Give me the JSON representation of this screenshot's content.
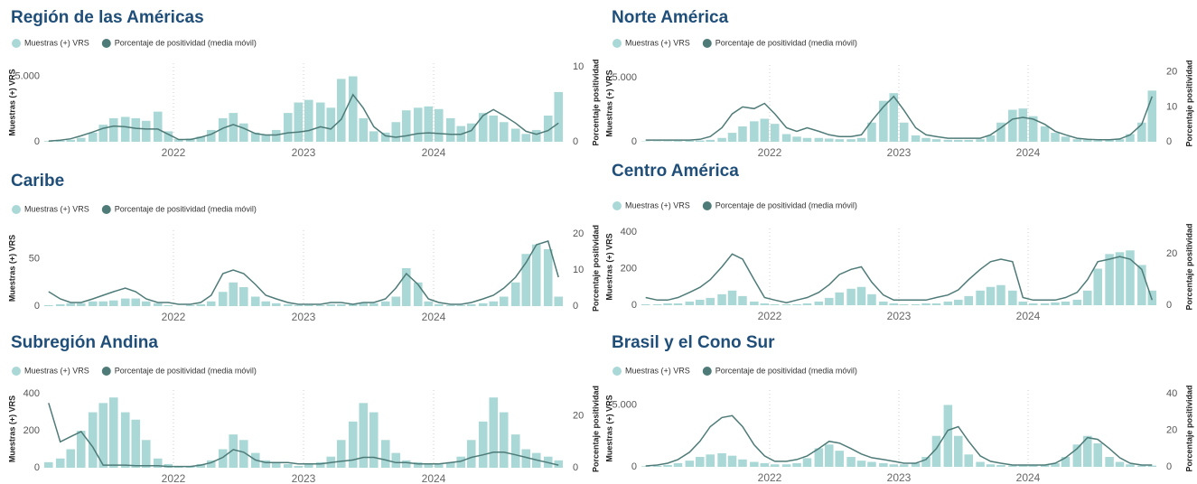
{
  "chart_data": [
    {
      "type": "combo",
      "title": "Región de las Américas",
      "x": [
        2021.04,
        2021.13,
        2021.21,
        2021.29,
        2021.38,
        2021.46,
        2021.54,
        2021.63,
        2021.71,
        2021.79,
        2021.88,
        2021.96,
        2022.04,
        2022.13,
        2022.21,
        2022.29,
        2022.38,
        2022.46,
        2022.54,
        2022.63,
        2022.71,
        2022.79,
        2022.88,
        2022.96,
        2023.04,
        2023.13,
        2023.21,
        2023.29,
        2023.38,
        2023.46,
        2023.54,
        2023.63,
        2023.71,
        2023.79,
        2023.88,
        2023.96,
        2024.04,
        2024.13,
        2024.21,
        2024.29,
        2024.38,
        2024.46,
        2024.54,
        2024.63,
        2024.71,
        2024.79,
        2024.88,
        2024.96
      ],
      "series": [
        {
          "name": "Muestras (+) VRS",
          "color": "#a9d8d6",
          "values": [
            50,
            80,
            150,
            300,
            700,
            1300,
            1800,
            1900,
            1800,
            1600,
            2300,
            800,
            200,
            250,
            400,
            900,
            1800,
            2200,
            1400,
            700,
            500,
            900,
            2200,
            3000,
            3200,
            3000,
            2600,
            4800,
            5000,
            1800,
            800,
            700,
            1500,
            2400,
            2600,
            2700,
            2500,
            1800,
            1200,
            1400,
            2200,
            2000,
            1500,
            1000,
            600,
            900,
            2000,
            3800
          ]
        },
        {
          "name": "Porcentaje de positividad (media móvil)",
          "color": "#4e7b78",
          "axis": "y2",
          "values": [
            0.1,
            0.2,
            0.4,
            0.8,
            1.3,
            1.8,
            2.1,
            2.0,
            1.8,
            1.7,
            1.7,
            1.0,
            0.3,
            0.3,
            0.6,
            1.0,
            1.8,
            2.3,
            1.8,
            1.1,
            0.9,
            0.9,
            1.2,
            1.3,
            1.5,
            2.0,
            1.7,
            3.0,
            6.3,
            4.5,
            2.0,
            0.8,
            0.6,
            0.8,
            1.1,
            1.2,
            1.1,
            1.0,
            1.0,
            1.5,
            3.5,
            4.3,
            3.5,
            2.5,
            1.4,
            1.0,
            1.5,
            2.5
          ]
        }
      ],
      "xlim": [
        2021,
        2025
      ],
      "xticks": [
        2022,
        2023,
        2024
      ],
      "ylim": [
        0,
        6000
      ],
      "yticks": [
        0,
        {
          "value": 5000,
          "label": "5.000"
        }
      ],
      "y2lim": [
        0,
        10.5
      ],
      "y2ticks": [
        0,
        10
      ],
      "ylabel": "Muestras (+) VRS",
      "y2label": "Porcentaje positividad",
      "grid": true
    },
    {
      "type": "combo",
      "title": "Norte América",
      "x": [
        2021.04,
        2021.13,
        2021.21,
        2021.29,
        2021.38,
        2021.46,
        2021.54,
        2021.63,
        2021.71,
        2021.79,
        2021.88,
        2021.96,
        2022.04,
        2022.13,
        2022.21,
        2022.29,
        2022.38,
        2022.46,
        2022.54,
        2022.63,
        2022.71,
        2022.79,
        2022.88,
        2022.96,
        2023.04,
        2023.13,
        2023.21,
        2023.29,
        2023.38,
        2023.46,
        2023.54,
        2023.63,
        2023.71,
        2023.79,
        2023.88,
        2023.96,
        2024.04,
        2024.13,
        2024.21,
        2024.29,
        2024.38,
        2024.46,
        2024.54,
        2024.63,
        2024.71,
        2024.79,
        2024.88,
        2024.96
      ],
      "series": [
        {
          "name": "Muestras (+) VRS",
          "color": "#a9d8d6",
          "values": [
            30,
            30,
            40,
            60,
            80,
            100,
            150,
            300,
            700,
            1200,
            1600,
            1800,
            1400,
            600,
            400,
            300,
            300,
            250,
            200,
            200,
            300,
            1500,
            3200,
            3800,
            1500,
            500,
            300,
            200,
            150,
            150,
            150,
            200,
            500,
            1500,
            2500,
            2600,
            2000,
            1200,
            700,
            400,
            200,
            150,
            100,
            150,
            200,
            600,
            1500,
            4000
          ]
        },
        {
          "name": "Porcentaje de positividad (media móvil)",
          "color": "#4e7b78",
          "axis": "y2",
          "values": [
            0.5,
            0.5,
            0.5,
            0.5,
            0.5,
            0.7,
            1.5,
            4,
            8,
            10,
            9.5,
            11,
            8,
            4,
            3,
            4,
            3,
            2,
            1.5,
            1.5,
            2,
            6,
            10,
            13,
            9,
            4,
            2,
            1.5,
            1,
            1,
            1,
            1,
            2,
            4,
            6.5,
            7,
            6.5,
            5,
            3,
            2,
            1,
            0.7,
            0.6,
            0.6,
            0.8,
            2,
            5,
            13
          ]
        }
      ],
      "xlim": [
        2021,
        2025
      ],
      "xticks": [
        2022,
        2023,
        2024
      ],
      "ylim": [
        0,
        6000
      ],
      "yticks": [
        0,
        {
          "value": 5000,
          "label": "5.000"
        }
      ],
      "y2lim": [
        0,
        22
      ],
      "y2ticks": [
        0,
        10,
        20
      ],
      "ylabel": "Muestras (+) VRS",
      "y2label": "Porcentaje positividad",
      "grid": true
    },
    {
      "type": "combo",
      "title": "Caribe",
      "x": [
        2021.04,
        2021.13,
        2021.21,
        2021.29,
        2021.38,
        2021.46,
        2021.54,
        2021.63,
        2021.71,
        2021.79,
        2021.88,
        2021.96,
        2022.04,
        2022.13,
        2022.21,
        2022.29,
        2022.38,
        2022.46,
        2022.54,
        2022.63,
        2022.71,
        2022.79,
        2022.88,
        2022.96,
        2023.04,
        2023.13,
        2023.21,
        2023.29,
        2023.38,
        2023.46,
        2023.54,
        2023.63,
        2023.71,
        2023.79,
        2023.88,
        2023.96,
        2024.04,
        2024.13,
        2024.21,
        2024.29,
        2024.38,
        2024.46,
        2024.54,
        2024.63,
        2024.71,
        2024.79,
        2024.88,
        2024.96
      ],
      "series": [
        {
          "name": "Muestras (+) VRS",
          "color": "#a9d8d6",
          "values": [
            1,
            2,
            3,
            3,
            5,
            5,
            6,
            8,
            8,
            5,
            3,
            1,
            0,
            1,
            2,
            5,
            15,
            25,
            20,
            10,
            5,
            3,
            2,
            1,
            1,
            1,
            2,
            2,
            2,
            3,
            3,
            5,
            10,
            40,
            25,
            5,
            2,
            1,
            1,
            2,
            3,
            5,
            10,
            25,
            55,
            65,
            60,
            10
          ]
        },
        {
          "name": "Porcentaje de positividad (media móvil)",
          "color": "#4e7b78",
          "axis": "y2",
          "values": [
            4,
            2,
            1,
            1,
            2,
            3,
            4,
            5,
            4,
            2,
            1,
            1,
            0.5,
            0.5,
            1,
            3,
            9,
            10,
            9,
            6,
            3,
            2,
            1,
            0.5,
            0.5,
            0.5,
            1,
            1,
            0.5,
            1,
            1,
            2,
            5,
            9,
            6,
            2,
            1,
            0.5,
            0.5,
            1,
            2,
            3,
            5,
            8,
            12,
            17,
            18,
            8
          ]
        }
      ],
      "xlim": [
        2021,
        2025
      ],
      "xticks": [
        2022,
        2023,
        2024
      ],
      "ylim": [
        0,
        80
      ],
      "yticks": [
        0,
        50
      ],
      "y2lim": [
        0,
        21
      ],
      "y2ticks": [
        0,
        10,
        20
      ],
      "ylabel": "Muestras (+) VRS",
      "y2label": "Porcentaje positividad",
      "grid": true
    },
    {
      "type": "combo",
      "title": "Centro América",
      "x": [
        2021.04,
        2021.13,
        2021.21,
        2021.29,
        2021.38,
        2021.46,
        2021.54,
        2021.63,
        2021.71,
        2021.79,
        2021.88,
        2021.96,
        2022.04,
        2022.13,
        2022.21,
        2022.29,
        2022.38,
        2022.46,
        2022.54,
        2022.63,
        2022.71,
        2022.79,
        2022.88,
        2022.96,
        2023.04,
        2023.13,
        2023.21,
        2023.29,
        2023.38,
        2023.46,
        2023.54,
        2023.63,
        2023.71,
        2023.79,
        2023.88,
        2023.96,
        2024.04,
        2024.13,
        2024.21,
        2024.29,
        2024.38,
        2024.46,
        2024.54,
        2024.63,
        2024.71,
        2024.79,
        2024.88,
        2024.96
      ],
      "series": [
        {
          "name": "Muestras (+) VRS",
          "color": "#a9d8d6",
          "values": [
            5,
            5,
            10,
            10,
            20,
            30,
            40,
            60,
            80,
            50,
            20,
            10,
            5,
            5,
            5,
            10,
            20,
            40,
            70,
            90,
            100,
            60,
            20,
            10,
            5,
            5,
            10,
            10,
            20,
            30,
            50,
            80,
            100,
            110,
            80,
            20,
            10,
            10,
            15,
            20,
            30,
            80,
            200,
            280,
            290,
            300,
            220,
            80
          ]
        },
        {
          "name": "Porcentaje de positividad (media móvil)",
          "color": "#4e7b78",
          "axis": "y2",
          "values": [
            3,
            2,
            2,
            3,
            5,
            7,
            10,
            15,
            20,
            18,
            10,
            3,
            2,
            1,
            2,
            3,
            5,
            8,
            12,
            14,
            15,
            9,
            4,
            2,
            2,
            2,
            2,
            3,
            4,
            6,
            10,
            14,
            17,
            18,
            17,
            3,
            2,
            2,
            2,
            3,
            5,
            10,
            17,
            18,
            19,
            18,
            14,
            2
          ]
        }
      ],
      "xlim": [
        2021,
        2025
      ],
      "xticks": [
        2022,
        2023,
        2024
      ],
      "ylim": [
        0,
        420
      ],
      "yticks": [
        0,
        200,
        400
      ],
      "y2lim": [
        0,
        30
      ],
      "y2ticks": [
        0,
        20
      ],
      "ylabel": "Muestras (+) VRS",
      "y2label": "Porcentaje positividad",
      "grid": true
    },
    {
      "type": "combo",
      "title": "Subregión Andina",
      "x": [
        2021.04,
        2021.13,
        2021.21,
        2021.29,
        2021.38,
        2021.46,
        2021.54,
        2021.63,
        2021.71,
        2021.79,
        2021.88,
        2021.96,
        2022.04,
        2022.13,
        2022.21,
        2022.29,
        2022.38,
        2022.46,
        2022.54,
        2022.63,
        2022.71,
        2022.79,
        2022.88,
        2022.96,
        2023.04,
        2023.13,
        2023.21,
        2023.29,
        2023.38,
        2023.46,
        2023.54,
        2023.63,
        2023.71,
        2023.79,
        2023.88,
        2023.96,
        2024.04,
        2024.13,
        2024.21,
        2024.29,
        2024.38,
        2024.46,
        2024.54,
        2024.63,
        2024.71,
        2024.79,
        2024.88,
        2024.96
      ],
      "series": [
        {
          "name": "Muestras (+) VRS",
          "color": "#a9d8d6",
          "values": [
            30,
            50,
            100,
            200,
            300,
            350,
            380,
            300,
            260,
            150,
            50,
            20,
            10,
            10,
            20,
            40,
            100,
            180,
            150,
            80,
            40,
            30,
            20,
            10,
            20,
            30,
            60,
            150,
            250,
            350,
            300,
            150,
            80,
            40,
            30,
            20,
            20,
            30,
            60,
            150,
            250,
            380,
            300,
            180,
            100,
            80,
            60,
            40
          ]
        },
        {
          "name": "Porcentaje de positividad (media móvil)",
          "color": "#4e7b78",
          "axis": "y2",
          "values": [
            25,
            10,
            12,
            14,
            8,
            1,
            1,
            1,
            0.8,
            0.8,
            0.8,
            0.5,
            0.5,
            0.5,
            1,
            2,
            4,
            7,
            6,
            3,
            2,
            2,
            2,
            1.5,
            1.5,
            1.5,
            2,
            2.5,
            3,
            4,
            4,
            3,
            2,
            2,
            1.5,
            1.5,
            1.5,
            2,
            2.5,
            4,
            5,
            6,
            6,
            5,
            4,
            3,
            2,
            1
          ]
        }
      ],
      "xlim": [
        2021,
        2025
      ],
      "xticks": [
        2022,
        2023,
        2024
      ],
      "ylim": [
        0,
        420
      ],
      "yticks": [
        0,
        200,
        400
      ],
      "y2lim": [
        0,
        30
      ],
      "y2ticks": [
        0,
        20
      ],
      "ylabel": "Muestras (+) VRS",
      "y2label": "Porcentaje positividad",
      "grid": true
    },
    {
      "type": "combo",
      "title": "Brasil y el Cono Sur",
      "x": [
        2021.04,
        2021.13,
        2021.21,
        2021.29,
        2021.38,
        2021.46,
        2021.54,
        2021.63,
        2021.71,
        2021.79,
        2021.88,
        2021.96,
        2022.04,
        2022.13,
        2022.21,
        2022.29,
        2022.38,
        2022.46,
        2022.54,
        2022.63,
        2022.71,
        2022.79,
        2022.88,
        2022.96,
        2023.04,
        2023.13,
        2023.21,
        2023.29,
        2023.38,
        2023.46,
        2023.54,
        2023.63,
        2023.71,
        2023.79,
        2023.88,
        2023.96,
        2024.04,
        2024.13,
        2024.21,
        2024.29,
        2024.38,
        2024.46,
        2024.54,
        2024.63,
        2024.71,
        2024.79,
        2024.88,
        2024.96
      ],
      "series": [
        {
          "name": "Muestras (+) VRS",
          "color": "#a9d8d6",
          "values": [
            50,
            80,
            150,
            300,
            500,
            800,
            1000,
            1100,
            900,
            600,
            400,
            300,
            200,
            200,
            300,
            700,
            1500,
            1800,
            1300,
            800,
            500,
            400,
            300,
            200,
            200,
            300,
            800,
            2500,
            5000,
            2500,
            1000,
            400,
            200,
            150,
            100,
            100,
            100,
            150,
            300,
            800,
            1800,
            2500,
            1900,
            800,
            400,
            200,
            100,
            100
          ]
        },
        {
          "name": "Porcentaje de positividad (media móvil)",
          "color": "#4e7b78",
          "axis": "y2",
          "values": [
            0.5,
            1,
            2,
            4,
            8,
            14,
            22,
            27,
            28,
            22,
            12,
            6,
            3,
            3,
            4,
            6,
            10,
            14,
            13,
            10,
            7,
            5,
            4,
            3,
            2,
            2,
            4,
            10,
            20,
            22,
            14,
            6,
            3,
            2,
            1,
            1,
            1,
            1,
            2,
            5,
            10,
            16,
            15,
            10,
            5,
            2,
            1,
            1
          ]
        }
      ],
      "xlim": [
        2021,
        2025
      ],
      "xticks": [
        2022,
        2023,
        2024
      ],
      "ylim": [
        0,
        6200
      ],
      "yticks": [
        0,
        {
          "value": 5000,
          "label": "5.000"
        }
      ],
      "y2lim": [
        0,
        42
      ],
      "y2ticks": [
        0,
        20,
        40
      ],
      "ylabel": "Muestras (+) VRS",
      "y2label": "Porcentaje positividad",
      "grid": true
    }
  ]
}
